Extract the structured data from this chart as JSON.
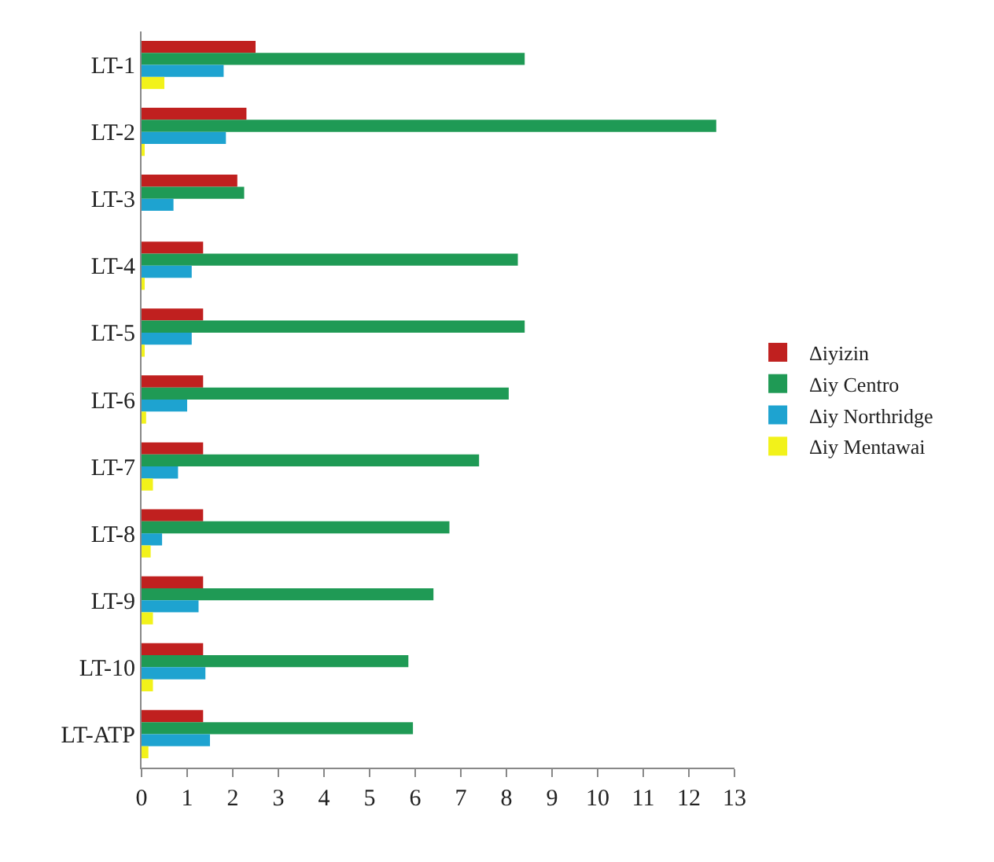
{
  "chart_data": {
    "type": "bar",
    "orientation": "horizontal",
    "categories": [
      "LT-1",
      "LT-2",
      "LT-3",
      "LT-4",
      "LT-5",
      "LT-6",
      "LT-7",
      "LT-8",
      "LT-9",
      "LT-10",
      "LT-ATP"
    ],
    "series": [
      {
        "name": "Δiyizin",
        "color": "#c0201f",
        "values": [
          2.5,
          2.3,
          2.1,
          1.35,
          1.35,
          1.35,
          1.35,
          1.35,
          1.35,
          1.35,
          1.35
        ]
      },
      {
        "name": "Δiy Centro",
        "color": "#1f9a55",
        "values": [
          8.4,
          12.6,
          2.25,
          8.25,
          8.4,
          8.05,
          7.4,
          6.75,
          6.4,
          5.85,
          5.95
        ]
      },
      {
        "name": "Δiy Northridge",
        "color": "#1ea3d0",
        "values": [
          1.8,
          1.85,
          0.7,
          1.1,
          1.1,
          1.0,
          0.8,
          0.45,
          1.25,
          1.4,
          1.5
        ]
      },
      {
        "name": "Δiy Mentawai",
        "color": "#f2f21a",
        "values": [
          0.5,
          0.05,
          0.0,
          0.05,
          0.05,
          0.1,
          0.25,
          0.2,
          0.25,
          0.25,
          0.15
        ]
      }
    ],
    "xlim": [
      0,
      13
    ],
    "xticks": [
      0,
      1,
      2,
      3,
      4,
      5,
      6,
      7,
      8,
      9,
      10,
      11,
      12,
      13
    ],
    "legend": "right"
  }
}
